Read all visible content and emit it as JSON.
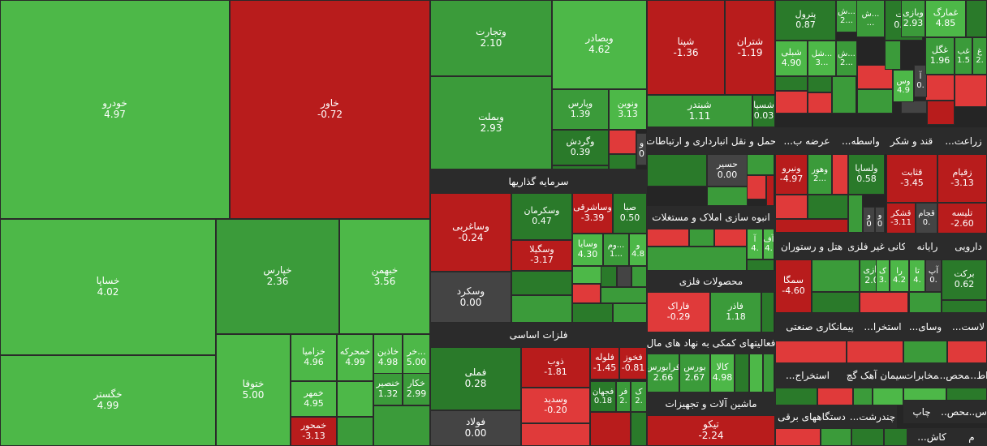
{
  "colors": {
    "up_strong": "#4db848",
    "up_mid": "#3b9b3a",
    "up_dark": "#2a7a2a",
    "down_strong": "#b81c1c",
    "down_mid": "#e03a3a",
    "flat": "#444444",
    "header_bg": "#2b2b2b"
  },
  "chart_data": {
    "type": "treemap",
    "groups": [
      "سرمایه گذاریها",
      "فلزات اساسی",
      "حمل و نقل انبارداری و ارتباطات",
      "انبوه سازی املاک و مستغلات",
      "محصولات فلزی",
      "فعالیتهای کمکی به نهاد های مال",
      "ماشین آلات و تجهیزات",
      "عرضه ب...",
      "واسطه...",
      "قند و شکر",
      "زراعت...",
      "کانی غیر فلزی",
      "هتل و رستوران",
      "رایانه",
      "دارویی",
      "پیمانکاری صنعتی",
      "استخرا...",
      "وسای...",
      "لاست...",
      "استخراج...",
      "سیمان آهک گچ",
      "مخابرات",
      "محص...",
      "اط...",
      "دستگاههای برقی",
      "چندرشت...",
      "چاپ",
      "محص...",
      "اس...",
      "کاش...",
      "م"
    ],
    "tiles": [
      {
        "symbol": "خودرو",
        "change": "4.97"
      },
      {
        "symbol": "خساپا",
        "change": "4.02"
      },
      {
        "symbol": "خگستر",
        "change": "4.99"
      },
      {
        "symbol": "خاور",
        "change": "-0.72"
      },
      {
        "symbol": "خپارس",
        "change": "2.36"
      },
      {
        "symbol": "خبهمن",
        "change": "3.56"
      },
      {
        "symbol": "ختوقا",
        "change": "5.00"
      },
      {
        "symbol": "خزامیا",
        "change": "4.96"
      },
      {
        "symbol": "خمحرکه",
        "change": "4.99"
      },
      {
        "symbol": "خاذین",
        "change": "4.98"
      },
      {
        "symbol": "خر...",
        "change": "5.00"
      },
      {
        "symbol": "خمهر",
        "change": "4.95"
      },
      {
        "symbol": "خنصیر",
        "change": "1.32"
      },
      {
        "symbol": "خکار",
        "change": "2.99"
      },
      {
        "symbol": "خمحور",
        "change": "-3.13"
      },
      {
        "symbol": "وتجارت",
        "change": "2.10"
      },
      {
        "symbol": "وبصادر",
        "change": "4.62"
      },
      {
        "symbol": "وبملت",
        "change": "2.93"
      },
      {
        "symbol": "وپارس",
        "change": "1.39"
      },
      {
        "symbol": "ونوین",
        "change": "3.13"
      },
      {
        "symbol": "وگردش",
        "change": "0.39"
      },
      {
        "symbol": "و",
        "change": "0"
      },
      {
        "symbol": "وساغربی",
        "change": "-0.24"
      },
      {
        "symbol": "وسکرمان",
        "change": "0.47"
      },
      {
        "symbol": "وساشرقی",
        "change": "-3.39"
      },
      {
        "symbol": "صبا",
        "change": "0.50"
      },
      {
        "symbol": "وسگیلا",
        "change": "-3.17"
      },
      {
        "symbol": "وسایا",
        "change": "4.30"
      },
      {
        "symbol": "وم...",
        "change": "1..."
      },
      {
        "symbol": "و",
        "change": "4.8"
      },
      {
        "symbol": "وسکرد",
        "change": "0.00"
      },
      {
        "symbol": "فملی",
        "change": "0.28"
      },
      {
        "symbol": "ذوب",
        "change": "-1.81"
      },
      {
        "symbol": "فلوله",
        "change": "-1.45"
      },
      {
        "symbol": "فخوز",
        "change": "-0.81"
      },
      {
        "symbol": "وسدید",
        "change": "-0.20"
      },
      {
        "symbol": "فجهان",
        "change": "0.18"
      },
      {
        "symbol": "فر",
        "change": "2."
      },
      {
        "symbol": "ک",
        "change": "2."
      },
      {
        "symbol": "فولاد",
        "change": "0.00"
      },
      {
        "symbol": "شپنا",
        "change": "-1.36"
      },
      {
        "symbol": "شتران",
        "change": "-1.19"
      },
      {
        "symbol": "شبندر",
        "change": "1.11"
      },
      {
        "symbol": "شسپا",
        "change": "0.03"
      },
      {
        "symbol": "حسیر",
        "change": "0.00"
      },
      {
        "symbol": "آ",
        "change": "4."
      },
      {
        "symbol": "آف",
        "change": "4."
      },
      {
        "symbol": "فاراک",
        "change": "-0.29"
      },
      {
        "symbol": "فاذر",
        "change": "1.18"
      },
      {
        "symbol": "فرابورس",
        "change": "2.66"
      },
      {
        "symbol": "بورس",
        "change": "2.67"
      },
      {
        "symbol": "کالا",
        "change": "4.98"
      },
      {
        "symbol": "تیکو",
        "change": "-2.24"
      },
      {
        "symbol": "پترول",
        "change": "0.87"
      },
      {
        "symbol": "ش...",
        "change": "2..."
      },
      {
        "symbol": "شبلی",
        "change": "4.90"
      },
      {
        "symbol": "شل...",
        "change": "3..."
      },
      {
        "symbol": "ش...",
        "change": "2..."
      },
      {
        "symbol": "ملت",
        "change": "0.33"
      },
      {
        "symbol": "وبازی",
        "change": "2.93"
      },
      {
        "symbol": "غمارگ",
        "change": "4.85"
      },
      {
        "symbol": "ش...",
        "change": "..."
      },
      {
        "symbol": "وس",
        "change": "4.9"
      },
      {
        "symbol": "آ",
        "change": "0."
      },
      {
        "symbol": "غگل",
        "change": "1.96"
      },
      {
        "symbol": "غب",
        "change": "1.5"
      },
      {
        "symbol": "غ",
        "change": "2."
      },
      {
        "symbol": "ونیرو",
        "change": "-4.97"
      },
      {
        "symbol": "وهور",
        "change": "2..."
      },
      {
        "symbol": "ولساپا",
        "change": "0.58"
      },
      {
        "symbol": "و",
        "change": "0"
      },
      {
        "symbol": "و",
        "change": "0"
      },
      {
        "symbol": "قثابت",
        "change": "-3.45"
      },
      {
        "symbol": "قشکر",
        "change": "-3.11"
      },
      {
        "symbol": "قجام",
        "change": "0."
      },
      {
        "symbol": "زقیام",
        "change": "-3.13"
      },
      {
        "symbol": "تلیسه",
        "change": "-2.60"
      },
      {
        "symbol": "سمگا",
        "change": "-4.60"
      },
      {
        "symbol": "کرازی",
        "change": "2.00"
      },
      {
        "symbol": "ک",
        "change": "3."
      },
      {
        "symbol": "را",
        "change": "4.2"
      },
      {
        "symbol": "تا",
        "change": "4."
      },
      {
        "symbol": "آپ",
        "change": "0."
      },
      {
        "symbol": "برکت",
        "change": "0.62"
      }
    ]
  }
}
